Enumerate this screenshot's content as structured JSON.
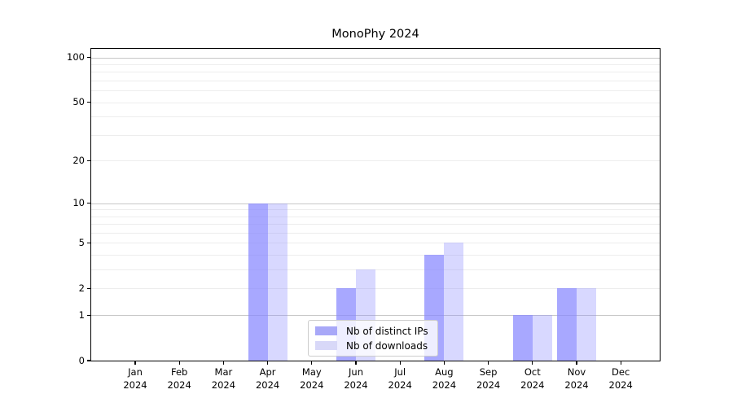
{
  "title": "MonoPhy 2024",
  "chart_data": {
    "type": "bar",
    "title": "MonoPhy 2024",
    "xlabel": "",
    "ylabel": "",
    "year": "2024",
    "months": [
      "Jan",
      "Feb",
      "Mar",
      "Apr",
      "May",
      "Jun",
      "Jul",
      "Aug",
      "Sep",
      "Oct",
      "Nov",
      "Dec"
    ],
    "categories": [
      "Jan 2024",
      "Feb 2024",
      "Mar 2024",
      "Apr 2024",
      "May 2024",
      "Jun 2024",
      "Jul 2024",
      "Aug 2024",
      "Sep 2024",
      "Oct 2024",
      "Nov 2024",
      "Dec 2024"
    ],
    "series": [
      {
        "name": "Nb of distinct IPs",
        "values": [
          0,
          0,
          0,
          10,
          0,
          2,
          0,
          4,
          0,
          1,
          2,
          0
        ],
        "base_color": "#8888ff",
        "alpha": 0.73,
        "hex": "#a8a8f8"
      },
      {
        "name": "Nb of downloads",
        "values": [
          0,
          0,
          0,
          10,
          0,
          3,
          0,
          5,
          0,
          1,
          2,
          0
        ],
        "base_color": "#8888ff",
        "alpha": 0.33,
        "hex": "#d8d8f8"
      }
    ],
    "yscale": "log10(1+y)",
    "ylim": [
      0,
      114
    ],
    "ytick_values": [
      100,
      50,
      20,
      10,
      5,
      2,
      1,
      0
    ],
    "ytick_labels": [
      "100",
      "50",
      "20",
      "10",
      "5",
      "2",
      "1",
      "0"
    ],
    "major_grid_values": [
      1,
      10,
      100
    ],
    "minor_grid_values": [
      2,
      3,
      4,
      5,
      6,
      7,
      8,
      9,
      20,
      30,
      40,
      50,
      60,
      70,
      80,
      90
    ],
    "grid": true,
    "legend_position": "lower center"
  },
  "legend": {
    "items": [
      {
        "label": "Nb of distinct IPs",
        "color": "#a8a8f8"
      },
      {
        "label": "Nb of downloads",
        "color": "#d8d8f8"
      }
    ]
  },
  "colors": {
    "background": "#ffffff",
    "axis": "#000000",
    "major_grid": "#c8c8c8",
    "minor_grid": "#ededed",
    "bar_distinct_ips": "#a8a8f8",
    "bar_downloads": "#d8d8f8"
  }
}
